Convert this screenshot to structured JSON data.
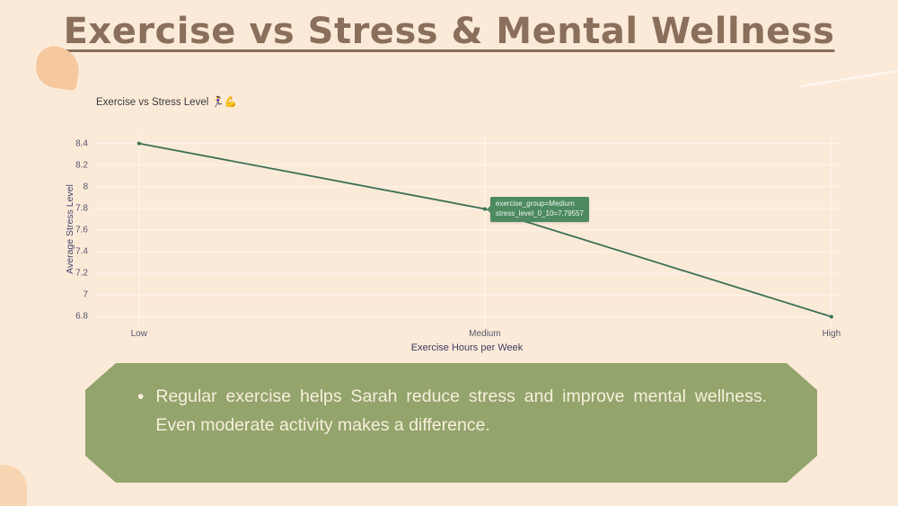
{
  "page": {
    "title": "Exercise vs Stress & Mental Wellness"
  },
  "chart": {
    "title": "Exercise vs Stress Level 🏃‍♀️💪",
    "ylabel": "Average Stress Level",
    "xlabel": "Exercise Hours per Week",
    "tooltip": {
      "line1": "exercise_group=Medium",
      "line2": "stress_level_0_10=7.79557"
    }
  },
  "chart_data": {
    "type": "line",
    "title": "Exercise vs Stress Level",
    "categories": [
      "Low",
      "Medium",
      "High"
    ],
    "values": [
      8.4,
      7.79557,
      6.8
    ],
    "xfrac": [
      0.06,
      0.524,
      0.989
    ],
    "yticks": [
      8.4,
      8.2,
      8,
      7.8,
      7.6,
      7.4,
      7.2,
      7,
      6.8
    ],
    "ylim": [
      6.72,
      8.48
    ],
    "xlabel": "Exercise Hours per Week",
    "ylabel": "Average Stress Level",
    "grid": true,
    "legend": false,
    "line_color": "#3c7051",
    "tooltip_point_index": 1
  },
  "callout": {
    "bullet": "•",
    "text": "Regular exercise helps Sarah reduce stress and improve mental wellness. Even moderate activity makes a difference."
  },
  "colors": {
    "background": "#fcead9",
    "title": "#8a6f5b",
    "line": "#3c7051",
    "tooltip_bg": "#4e8a60",
    "callout_bg": "#93a46c",
    "callout_text": "#f7efdb",
    "decorative_peach": "#f6c89e"
  }
}
